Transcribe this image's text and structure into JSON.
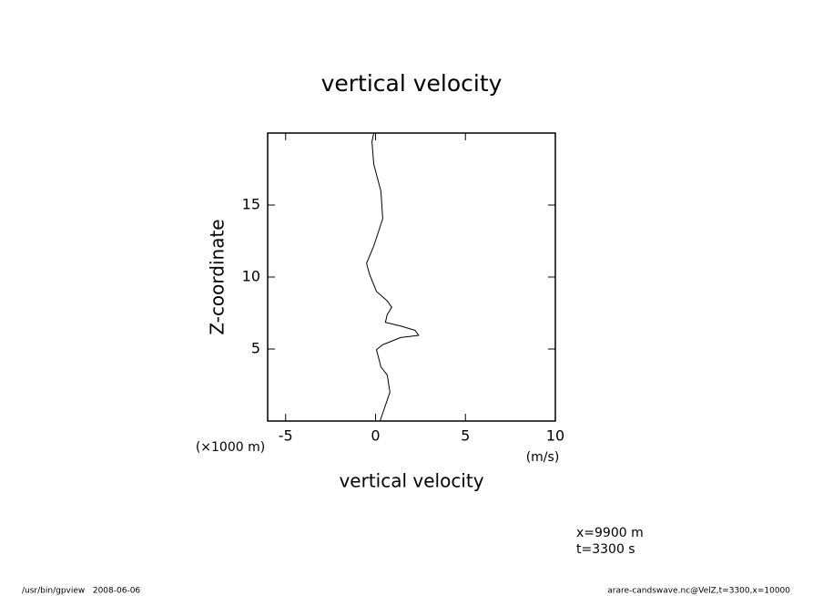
{
  "chart_data": {
    "type": "line",
    "title": "vertical velocity",
    "xlabel": "vertical velocity",
    "ylabel": "Z-coordinate",
    "xunit": "(m/s)",
    "yunit": "(×1000 m)",
    "xlim": [
      -6,
      10
    ],
    "xticks": [
      -5,
      0,
      5,
      10
    ],
    "ylim": [
      0,
      20
    ],
    "yticks": [
      5,
      10,
      15
    ],
    "x": [
      0.25,
      0.8,
      0.65,
      0.3,
      0.2,
      0.05,
      0.4,
      1.4,
      2.4,
      2.2,
      1.4,
      0.55,
      0.65,
      0.9,
      0.65,
      0.05,
      -0.35,
      -0.5,
      -0.1,
      0.4,
      0.3,
      -0.1,
      -0.2,
      -0.1
    ],
    "series": [
      {
        "color": "#000000",
        "values": [
          0,
          2.0,
          3.2,
          3.75,
          4.25,
          4.95,
          5.3,
          5.8,
          5.95,
          6.3,
          6.6,
          6.85,
          7.4,
          7.9,
          8.35,
          9.0,
          10.25,
          10.95,
          12.15,
          14.05,
          15.95,
          17.85,
          19.4,
          20
        ]
      }
    ],
    "annotations": [
      "x=9900 m",
      "t=3300 s"
    ],
    "footer_left": "/usr/bin/gpview   2008-06-06",
    "footer_right": "arare-candswave.nc@VelZ,t=3300,x=10000"
  }
}
